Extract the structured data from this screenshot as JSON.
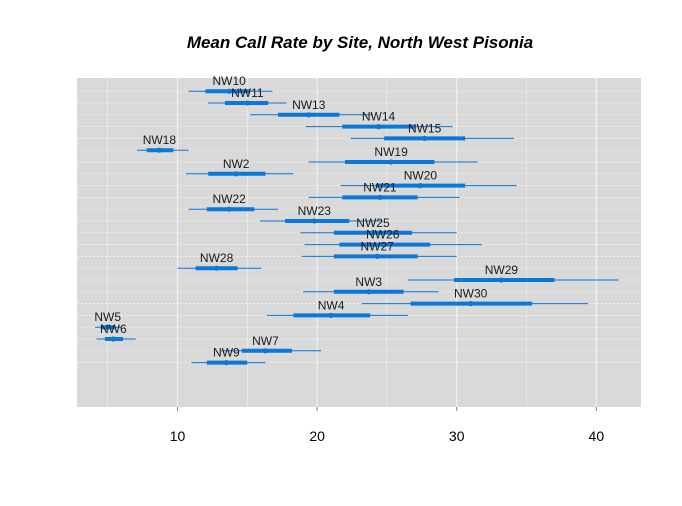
{
  "chart_data": {
    "type": "interval",
    "title": "Mean Call Rate by Site, North West Pisonia",
    "xlabel": "",
    "ylabel": "",
    "xlim": [
      2.8,
      43.2
    ],
    "x_ticks": [
      10,
      20,
      30,
      40
    ],
    "x_tick_labels": [
      "10",
      "20",
      "30",
      "40"
    ],
    "grid": true,
    "colors": {
      "panel_bg": "#d9d9d9",
      "grid_major": "#f2f2f2",
      "grid_minor": "#f2f2f2",
      "interval": "#0b77d8",
      "point": "#0b77d8"
    },
    "series": [
      {
        "site": "NW10",
        "mean": 13.7,
        "inner": [
          12.0,
          15.2
        ],
        "outer": [
          10.8,
          16.8
        ]
      },
      {
        "site": "NW11",
        "mean": 15.0,
        "inner": [
          13.4,
          16.5
        ],
        "outer": [
          12.2,
          17.8
        ]
      },
      {
        "site": "NW13",
        "mean": 19.4,
        "inner": [
          17.2,
          21.6
        ],
        "outer": [
          15.2,
          24.0
        ]
      },
      {
        "site": "NW14",
        "mean": 24.4,
        "inner": [
          21.8,
          27.0
        ],
        "outer": [
          19.2,
          29.7
        ]
      },
      {
        "site": "NW15",
        "mean": 27.7,
        "inner": [
          24.8,
          30.6
        ],
        "outer": [
          22.4,
          34.1
        ]
      },
      {
        "site": "NW18",
        "mean": 8.7,
        "inner": [
          7.8,
          9.7
        ],
        "outer": [
          7.1,
          10.8
        ]
      },
      {
        "site": "NW19",
        "mean": 25.3,
        "inner": [
          22.0,
          28.4
        ],
        "outer": [
          19.4,
          31.5
        ]
      },
      {
        "site": "NW2",
        "mean": 14.2,
        "inner": [
          12.2,
          16.3
        ],
        "outer": [
          10.6,
          18.3
        ]
      },
      {
        "site": "NW20",
        "mean": 27.4,
        "inner": [
          24.2,
          30.6
        ],
        "outer": [
          21.7,
          34.3
        ]
      },
      {
        "site": "NW21",
        "mean": 24.5,
        "inner": [
          21.8,
          27.2
        ],
        "outer": [
          19.4,
          30.2
        ]
      },
      {
        "site": "NW22",
        "mean": 13.7,
        "inner": [
          12.1,
          15.5
        ],
        "outer": [
          10.8,
          17.2
        ]
      },
      {
        "site": "NW23",
        "mean": 19.8,
        "inner": [
          17.7,
          22.3
        ],
        "outer": [
          15.9,
          24.7
        ]
      },
      {
        "site": "NW25",
        "mean": 24.0,
        "inner": [
          21.2,
          26.8
        ],
        "outer": [
          18.8,
          30.0
        ]
      },
      {
        "site": "NW26",
        "mean": 24.7,
        "inner": [
          21.6,
          28.1
        ],
        "outer": [
          19.1,
          31.8
        ]
      },
      {
        "site": "NW27",
        "mean": 24.3,
        "inner": [
          21.2,
          27.2
        ],
        "outer": [
          18.9,
          30.0
        ]
      },
      {
        "site": "NW28",
        "mean": 12.8,
        "inner": [
          11.3,
          14.3
        ],
        "outer": [
          10.0,
          16.0
        ]
      },
      {
        "site": "NW29",
        "mean": 33.2,
        "inner": [
          29.8,
          37.0
        ],
        "outer": [
          26.5,
          41.6
        ]
      },
      {
        "site": "NW3",
        "mean": 23.7,
        "inner": [
          21.2,
          26.2
        ],
        "outer": [
          19.0,
          28.7
        ]
      },
      {
        "site": "NW30",
        "mean": 31.0,
        "inner": [
          26.7,
          35.4
        ],
        "outer": [
          23.2,
          39.4
        ]
      },
      {
        "site": "NW4",
        "mean": 21.0,
        "inner": [
          18.3,
          23.8
        ],
        "outer": [
          16.4,
          26.5
        ]
      },
      {
        "site": "NW5",
        "mean": 5.0,
        "inner": [
          4.5,
          5.5
        ],
        "outer": [
          4.1,
          6.0
        ]
      },
      {
        "site": "NW6",
        "mean": 5.4,
        "inner": [
          4.8,
          6.1
        ],
        "outer": [
          4.2,
          7.0
        ]
      },
      {
        "site": "NW7",
        "mean": 16.3,
        "inner": [
          14.6,
          18.2
        ],
        "outer": [
          13.1,
          20.3
        ]
      },
      {
        "site": "NW9",
        "mean": 13.5,
        "inner": [
          12.1,
          15.0
        ],
        "outer": [
          11.0,
          16.3
        ]
      }
    ]
  }
}
